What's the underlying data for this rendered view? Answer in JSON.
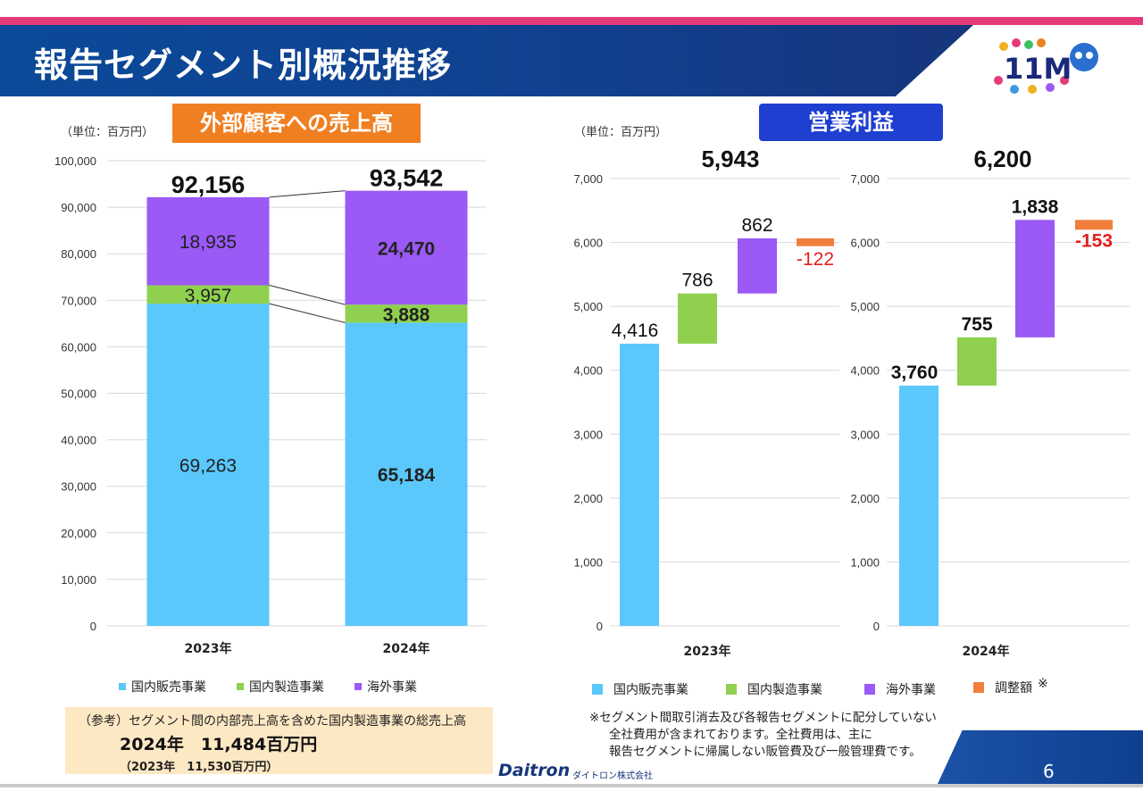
{
  "title": "報告セグメント別概況推移",
  "logo_text": "11M",
  "sales": {
    "pill": "外部顧客への売上高",
    "unit": "（単位：百万円）"
  },
  "profit": {
    "pill": "営業利益",
    "unit": "（単位：百万円）"
  },
  "legend_sales": [
    "国内販売事業",
    "国内製造事業",
    "海外事業"
  ],
  "legend_profit": [
    "国内販売事業",
    "国内製造事業",
    "海外事業",
    "調整額"
  ],
  "legend_profit_mark": "※",
  "colors": {
    "domestic_sales": "#5ac8fa",
    "domestic_mfg": "#8fd14f",
    "overseas": "#9b59f5",
    "adjust": "#f07f3c",
    "negative_text": "#e02020"
  },
  "note": {
    "line1": "（参考）セグメント間の内部売上高を含めた国内製造事業の総売上高",
    "line2": "2024年　11,484百万円",
    "line3": "（2023年　11,530百万円）"
  },
  "footnote": {
    "line1": "※セグメント間取引消去及び各報告セグメントに配分していない",
    "line2": "全社費用が含まれております。全社費用は、主に",
    "line3": "報告セグメントに帰属しない販管費及び一般管理費です。"
  },
  "brand": "Daitron",
  "brand_sub": "ダイトロン株式会社",
  "page_number": "6",
  "chart_data": [
    {
      "type": "bar",
      "stacked": true,
      "title": "外部顧客への売上高",
      "ylabel": "（単位：百万円）",
      "ylim": [
        0,
        100000
      ],
      "yticks": [
        0,
        10000,
        20000,
        30000,
        40000,
        50000,
        60000,
        70000,
        80000,
        90000,
        100000
      ],
      "ytick_labels": [
        "0",
        "10,000",
        "20,000",
        "30,000",
        "40,000",
        "50,000",
        "60,000",
        "70,000",
        "80,000",
        "90,000",
        "100,000"
      ],
      "categories": [
        "2023年",
        "2024年"
      ],
      "series": [
        {
          "name": "国内販売事業",
          "values": [
            69263,
            65184
          ],
          "labels": [
            "69,263",
            "65,184"
          ]
        },
        {
          "name": "国内製造事業",
          "values": [
            3957,
            3888
          ],
          "labels": [
            "3,957",
            "3,888"
          ]
        },
        {
          "name": "海外事業",
          "values": [
            18935,
            24470
          ],
          "labels": [
            "18,935",
            "24,470"
          ]
        }
      ],
      "totals": [
        92156,
        93542
      ],
      "total_labels": [
        "92,156",
        "93,542"
      ]
    },
    {
      "type": "waterfall",
      "title": "営業利益 2023年",
      "ylabel": "（単位：百万円）",
      "ylim": [
        0,
        7000
      ],
      "yticks": [
        0,
        1000,
        2000,
        3000,
        4000,
        5000,
        6000,
        7000
      ],
      "ytick_labels": [
        "0",
        "1,000",
        "2,000",
        "3,000",
        "4,000",
        "5,000",
        "6,000",
        "7,000"
      ],
      "xlabel": "2023年",
      "steps": [
        {
          "name": "国内販売事業",
          "value": 4416,
          "label": "4,416"
        },
        {
          "name": "国内製造事業",
          "value": 786,
          "label": "786"
        },
        {
          "name": "海外事業",
          "value": 862,
          "label": "862"
        },
        {
          "name": "調整額",
          "value": -122,
          "label": "-122"
        }
      ],
      "total": 5943,
      "total_label": "5,943"
    },
    {
      "type": "waterfall",
      "title": "営業利益 2024年",
      "ylim": [
        0,
        7000
      ],
      "yticks": [
        0,
        1000,
        2000,
        3000,
        4000,
        5000,
        6000,
        7000
      ],
      "ytick_labels": [
        "0",
        "1,000",
        "2,000",
        "3,000",
        "4,000",
        "5,000",
        "6,000",
        "7,000"
      ],
      "xlabel": "2024年",
      "steps": [
        {
          "name": "国内販売事業",
          "value": 3760,
          "label": "3,760"
        },
        {
          "name": "国内製造事業",
          "value": 755,
          "label": "755"
        },
        {
          "name": "海外事業",
          "value": 1838,
          "label": "1,838"
        },
        {
          "name": "調整額",
          "value": -153,
          "label": "-153"
        }
      ],
      "total": 6200,
      "total_label": "6,200"
    }
  ]
}
